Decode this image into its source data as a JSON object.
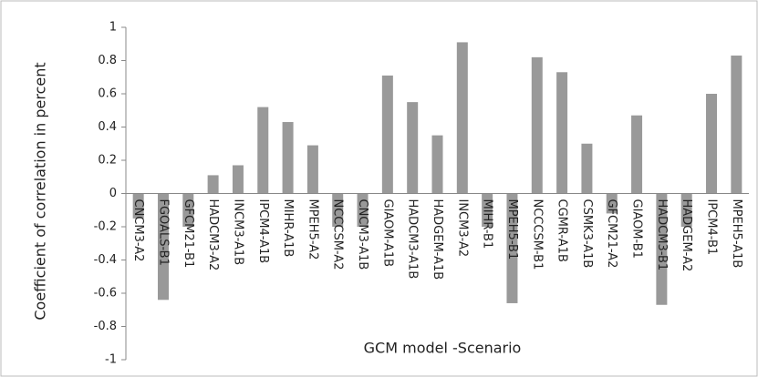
{
  "chart_data": {
    "type": "bar",
    "y_label": "Coefficient of correlation in percent",
    "x_label": "GCM model -Scenario",
    "categories": [
      "CNCM3-A2",
      "FGOALS-B1",
      "GFCM21-B1",
      "HADCM3-A2",
      "INCM3-A1B",
      "IPCM4-A1B",
      "MIHR-A1B",
      "MPEH5-A2",
      "NCCCSM-A2",
      "CNCM3-A1B",
      "GIAOM-A1B",
      "HADCM3-A1B",
      "HADGEM-A1B",
      "INCM3-A2",
      "MIHR-B1",
      "MPEH5-B1",
      "NCCCSM-B1",
      "CGMR-A1B",
      "CSMK3-A1B",
      "GFCM21-A2",
      "GIAOM-B1",
      "HADCM3-B1",
      "HADGEM-A2",
      "IPCM4-B1",
      "MPEH5-A1B"
    ],
    "values": [
      -0.15,
      -0.64,
      -0.2,
      0.11,
      0.17,
      0.52,
      0.43,
      0.29,
      -0.2,
      -0.2,
      0.71,
      0.55,
      0.35,
      0.91,
      -0.2,
      -0.66,
      0.82,
      0.73,
      0.3,
      -0.12,
      0.47,
      -0.67,
      -0.2,
      0.6,
      0.83
    ],
    "color": "#999999",
    "ylim": [
      -1,
      1
    ],
    "yticks": [
      -1,
      -0.8,
      -0.6,
      -0.4,
      -0.2,
      0,
      0.2,
      0.4,
      0.6,
      0.8,
      1
    ]
  }
}
